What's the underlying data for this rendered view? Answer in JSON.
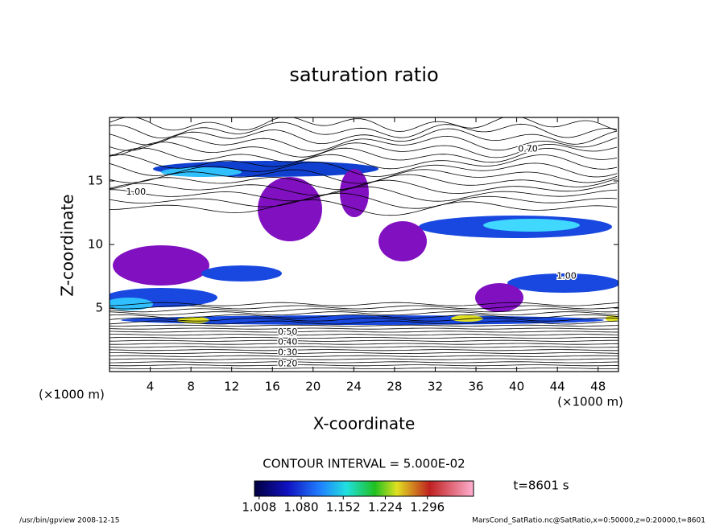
{
  "chart_data": {
    "type": "contour",
    "title": "saturation ratio",
    "x_label": "X-coordinate",
    "y_label": "Z-coordinate",
    "x_unit_label": "(×1000 m)",
    "y_unit_label": "(×1000 m)",
    "xlim": [
      0,
      50
    ],
    "xticks": [
      4,
      8,
      12,
      16,
      20,
      24,
      28,
      32,
      36,
      40,
      44,
      48
    ],
    "ylim": [
      0,
      20
    ],
    "yticks": [
      5,
      10,
      15
    ],
    "contour_interval": "CONTOUR INTERVAL = 5.000E-02",
    "contour_labels": [
      {
        "text": "0.20",
        "x": 17.5,
        "z": 0.6
      },
      {
        "text": "0.30",
        "x": 17.5,
        "z": 1.5
      },
      {
        "text": "0.40",
        "x": 17.5,
        "z": 2.3
      },
      {
        "text": "0.50",
        "x": 17.5,
        "z": 3.1
      },
      {
        "text": "1.00",
        "x": 2.6,
        "z": 14.1
      },
      {
        "text": "0.70",
        "x": 41.1,
        "z": 17.5
      },
      {
        "text": "1.00",
        "x": 44.9,
        "z": 7.5
      }
    ],
    "colorbar": {
      "lim": [
        1.0,
        1.375
      ],
      "ticks": [
        1.008,
        {
          "value": 1.08,
          "label": "1.080"
        },
        1.152,
        1.224,
        1.296
      ]
    },
    "time_label": "t=8601 s",
    "footer_left": "/usr/bin/gpview   2008-12-15",
    "footer_right": "MarsCond_SatRatio.nc@SatRatio,x=0:50000,z=0:20000,t=8601"
  }
}
